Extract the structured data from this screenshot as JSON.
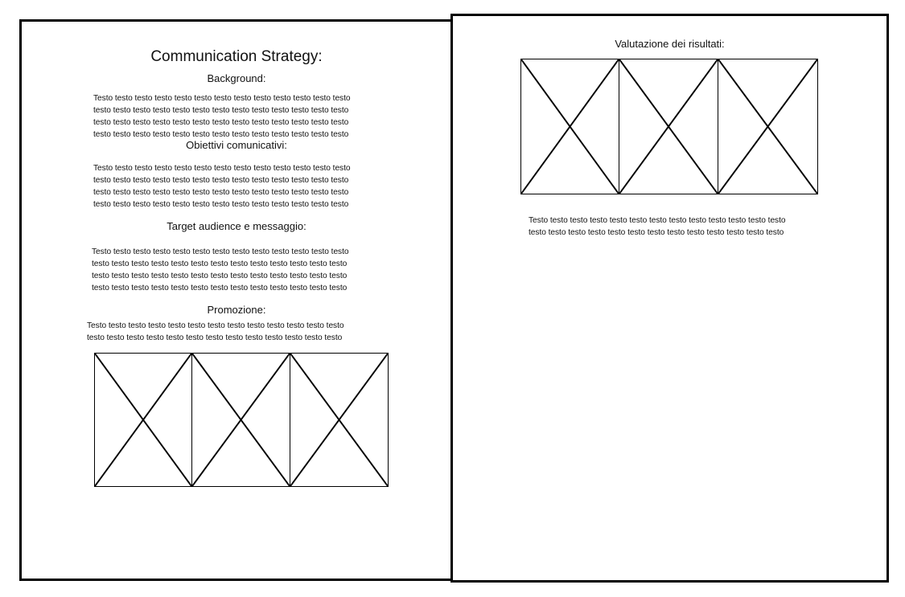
{
  "left_page": {
    "title": "Communication Strategy:",
    "sections": [
      {
        "heading": "Background:",
        "text": "Testo testo testo testo testo testo testo testo testo testo testo testo testo\ntesto testo testo testo testo testo testo testo testo testo testo testo testo\ntesto testo testo testo testo testo testo testo testo testo testo testo testo\ntesto testo testo testo testo testo testo testo testo testo testo testo testo"
      },
      {
        "heading": "Obiettivi comunicativi:",
        "text": "Testo testo testo testo testo testo testo testo testo testo testo testo testo\ntesto testo testo testo testo testo testo testo testo testo testo testo testo\ntesto testo testo testo testo testo testo testo testo testo testo testo testo\ntesto testo testo testo testo testo testo testo testo testo testo testo testo"
      },
      {
        "heading": "Target audience e messaggio:",
        "text": "Testo testo testo testo testo testo testo testo testo testo testo testo testo\ntesto testo testo testo testo testo testo testo testo testo testo testo testo\ntesto testo testo testo testo testo testo testo testo testo testo testo testo\ntesto testo testo testo testo testo testo testo testo testo testo testo testo"
      },
      {
        "heading": "Promozione:",
        "text": "Testo testo testo testo testo testo testo testo testo testo testo testo testo\ntesto testo testo testo testo testo testo testo testo testo testo testo testo"
      }
    ],
    "image_placeholders": 3
  },
  "right_page": {
    "heading": "Valutazione dei risultati:",
    "image_placeholders": 3,
    "text": "Testo testo testo testo testo testo testo testo testo testo testo testo testo\ntesto testo testo testo testo testo testo testo testo testo testo testo testo"
  }
}
